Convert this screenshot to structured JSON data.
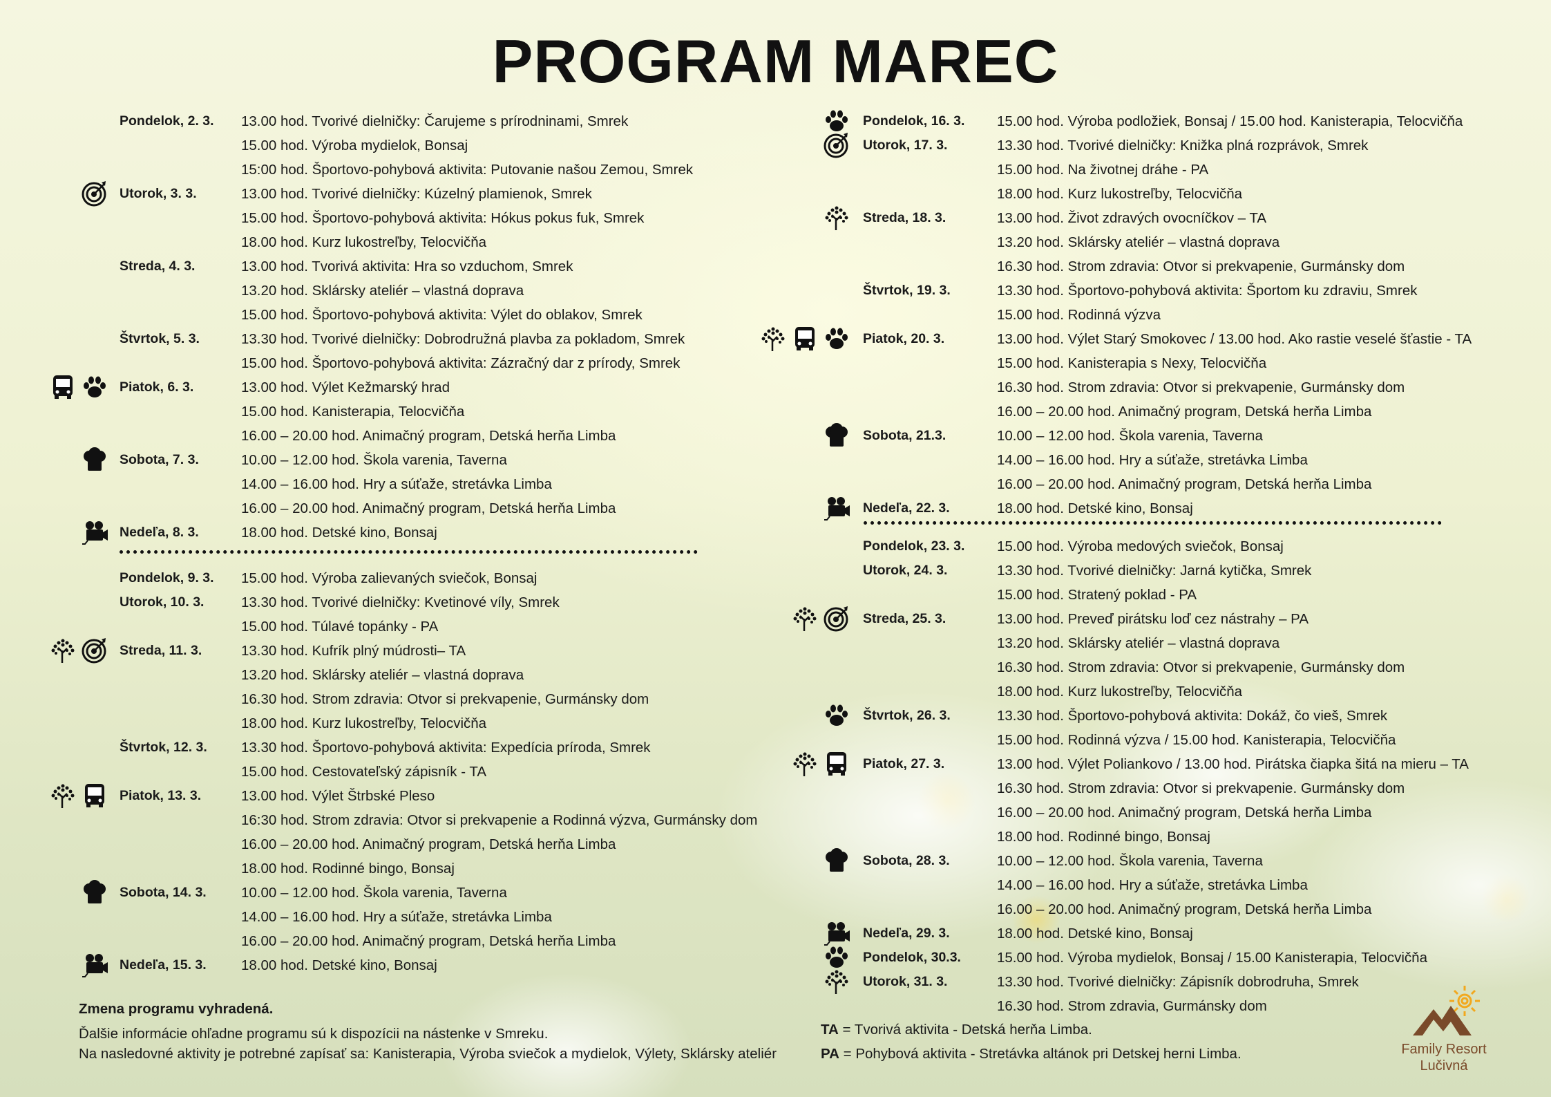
{
  "title": "PROGRAM MAREC",
  "columns": [
    {
      "side": "left",
      "blocks": [
        {
          "rows": [
            {
              "day": "Pondelok, 2. 3.",
              "text": "13.00 hod. Tvorivé dielničky: Čarujeme s prírodninami, Smrek"
            },
            {
              "text": "15.00 hod. Výroba mydielok, Bonsaj"
            },
            {
              "text": "15:00 hod. Športovo-pohybová aktivita: Putovanie našou Zemou, Smrek"
            },
            {
              "day": "Utorok, 3. 3.",
              "icons": [
                "target"
              ],
              "text": "13.00 hod. Tvorivé dielničky: Kúzelný plamienok, Smrek"
            },
            {
              "text": "15.00 hod. Športovo-pohybová aktivita: Hókus pokus fuk, Smrek"
            },
            {
              "text": "18.00 hod. Kurz lukostreľby, Telocvičňa"
            },
            {
              "day": "Streda, 4. 3.",
              "text": "13.00 hod. Tvorivá aktivita: Hra so vzduchom, Smrek"
            },
            {
              "text": "13.20 hod. Sklársky ateliér – vlastná doprava"
            },
            {
              "text": "15.00 hod. Športovo-pohybová aktivita: Výlet do oblakov, Smrek"
            },
            {
              "day": "Štvrtok, 5. 3.",
              "text": "13.30 hod. Tvorivé dielničky: Dobrodružná plavba za pokladom, Smrek"
            },
            {
              "text": "15.00 hod. Športovo-pohybová aktivita: Zázračný dar z prírody, Smrek"
            },
            {
              "day": "Piatok, 6. 3.",
              "icons": [
                "bus",
                "paw"
              ],
              "text": "13.00 hod. Výlet Kežmarský hrad"
            },
            {
              "text": "15.00 hod. Kanisterapia, Telocvičňa"
            },
            {
              "text": "16.00 – 20.00 hod. Animačný program, Detská herňa Limba"
            },
            {
              "day": "Sobota, 7. 3.",
              "icons": [
                "chef-hat"
              ],
              "text": "10.00 – 12.00 hod. Škola varenia, Taverna"
            },
            {
              "text": "14.00 – 16.00 hod. Hry a súťaže, stretávka Limba"
            },
            {
              "text": "16.00 – 20.00 hod. Animačný program, Detská herňa Limba"
            },
            {
              "day": "Nedeľa, 8. 3.",
              "icons": [
                "movie-camera"
              ],
              "text": "18.00 hod. Detské kino, Bonsaj"
            }
          ]
        },
        {
          "rows": [
            {
              "day": "Pondelok, 9. 3.",
              "text": "15.00 hod. Výroba zalievaných sviečok, Bonsaj"
            },
            {
              "day": "Utorok, 10. 3.",
              "text": "13.30 hod. Tvorivé dielničky: Kvetinové víly, Smrek"
            },
            {
              "text": "15.00 hod. Túlavé topánky - PA"
            },
            {
              "day": "Streda, 11. 3.",
              "icons": [
                "tree",
                "target"
              ],
              "text": "13.30 hod. Kufrík plný múdrosti– TA"
            },
            {
              "text": "13.20 hod. Sklársky ateliér – vlastná doprava"
            },
            {
              "text": "16.30 hod. Strom zdravia: Otvor si prekvapenie, Gurmánsky dom"
            },
            {
              "text": "18.00 hod. Kurz lukostreľby, Telocvičňa"
            },
            {
              "day": "Štvrtok, 12. 3.",
              "text": "13.30 hod. Športovo-pohybová aktivita: Expedícia príroda, Smrek"
            },
            {
              "text": "15.00 hod. Cestovateľský zápisník - TA"
            },
            {
              "day": "Piatok, 13. 3.",
              "icons": [
                "tree",
                "bus"
              ],
              "text": "13.00 hod. Výlet Štrbské Pleso"
            },
            {
              "text": "16:30 hod. Strom zdravia: Otvor si prekvapenie  a Rodinná výzva, Gurmánsky dom"
            },
            {
              "text": "16.00 – 20.00 hod. Animačný program, Detská herňa Limba"
            },
            {
              "text": "18.00 hod. Rodinné bingo, Bonsaj"
            },
            {
              "day": "Sobota, 14. 3.",
              "icons": [
                "chef-hat"
              ],
              "text": "10.00 – 12.00 hod. Škola varenia, Taverna"
            },
            {
              "text": "14.00 – 16.00 hod. Hry a súťaže, stretávka Limba"
            },
            {
              "text": "16.00 – 20.00 hod. Animačný program, Detská herňa Limba"
            },
            {
              "day": "Nedeľa, 15. 3.",
              "icons": [
                "movie-camera"
              ],
              "text": "18.00 hod. Detské kino, Bonsaj"
            }
          ]
        }
      ]
    },
    {
      "side": "right",
      "blocks": [
        {
          "rows": [
            {
              "day": "Pondelok, 16. 3.",
              "icons": [
                "paw"
              ],
              "text": "15.00 hod. Výroba podložiek, Bonsaj / 15.00 hod. Kanisterapia, Telocvičňa"
            },
            {
              "day": "Utorok, 17. 3.",
              "icons": [
                "target"
              ],
              "text": "13.30 hod. Tvorivé dielničky: Knižka plná rozprávok, Smrek"
            },
            {
              "text": "15.00 hod. Na životnej dráhe - PA"
            },
            {
              "text": "18.00 hod. Kurz lukostreľby, Telocvičňa"
            },
            {
              "day": "Streda, 18. 3.",
              "icons": [
                "tree"
              ],
              "text": "13.00 hod. Život zdravých ovocníčkov – TA"
            },
            {
              "text": "13.20 hod. Sklársky ateliér – vlastná doprava"
            },
            {
              "text": "16.30 hod. Strom zdravia: Otvor si prekvapenie, Gurmánsky dom"
            },
            {
              "day": "Štvrtok, 19. 3.",
              "text": "13.30 hod. Športovo-pohybová aktivita: Športom ku zdraviu, Smrek"
            },
            {
              "text": "15.00 hod. Rodinná výzva"
            },
            {
              "day": "Piatok, 20. 3.",
              "icons": [
                "tree",
                "bus",
                "paw"
              ],
              "text": "13.00 hod. Výlet Starý Smokovec / 13.00 hod. Ako rastie veselé šťastie -  TA"
            },
            {
              "text": "15.00 hod. Kanisterapia s Nexy, Telocvičňa"
            },
            {
              "text": "16.30 hod. Strom zdravia: Otvor si prekvapenie, Gurmánsky dom"
            },
            {
              "text": "16.00 – 20.00 hod. Animačný program, Detská herňa Limba"
            },
            {
              "day": "Sobota, 21.3.",
              "icons": [
                "chef-hat"
              ],
              "text": "10.00 – 12.00 hod. Škola varenia, Taverna"
            },
            {
              "text": "14.00 – 16.00 hod. Hry a súťaže, stretávka Limba"
            },
            {
              "text": "16.00 – 20.00 hod. Animačný program, Detská herňa Limba"
            },
            {
              "day": "Nedeľa, 22. 3.",
              "icons": [
                "movie-camera"
              ],
              "text": "18.00 hod. Detské kino, Bonsaj"
            }
          ]
        },
        {
          "rows": [
            {
              "day": "Pondelok, 23. 3.",
              "text": "15.00 hod. Výroba medových sviečok, Bonsaj"
            },
            {
              "day": "Utorok, 24. 3.",
              "text": "13.30 hod. Tvorivé dielničky: Jarná kytička, Smrek"
            },
            {
              "text": "15.00 hod. Stratený poklad - PA"
            },
            {
              "day": "Streda, 25. 3.",
              "icons": [
                "tree",
                "target"
              ],
              "text": "13.00 hod. Preveď pirátsku loď cez nástrahy – PA"
            },
            {
              "text": "13.20 hod. Sklársky ateliér – vlastná doprava"
            },
            {
              "text": "16.30 hod. Strom zdravia: Otvor si prekvapenie, Gurmánsky dom"
            },
            {
              "text": "18.00 hod. Kurz lukostreľby, Telocvičňa"
            },
            {
              "day": "Štvrtok, 26. 3.",
              "icons": [
                "paw"
              ],
              "text": "13.30 hod. Športovo-pohybová aktivita: Dokáž, čo vieš, Smrek"
            },
            {
              "text": "15.00 hod. Rodinná výzva /  15.00 hod. Kanisterapia, Telocvičňa"
            },
            {
              "day": "Piatok, 27. 3.",
              "icons": [
                "tree",
                "bus"
              ],
              "text": "13.00 hod. Výlet Poliankovo / 13.00 hod. Pirátska čiapka šitá na mieru – TA"
            },
            {
              "text": "16.30 hod. Strom zdravia: Otvor si prekvapenie. Gurmánsky dom"
            },
            {
              "text": "16.00 – 20.00 hod. Animačný program, Detská herňa Limba"
            },
            {
              "text": "18.00 hod. Rodinné bingo, Bonsaj"
            },
            {
              "day": "Sobota, 28. 3.",
              "icons": [
                "chef-hat"
              ],
              "text": "10.00 – 12.00 hod. Škola varenia, Taverna"
            },
            {
              "text": "14.00 – 16.00 hod. Hry a súťaže, stretávka Limba"
            },
            {
              "text": "16.00 – 20.00 hod. Animačný program, Detská herňa Limba"
            },
            {
              "day": "Nedeľa, 29. 3.",
              "icons": [
                "movie-camera"
              ],
              "text": "18.00 hod. Detské kino, Bonsaj"
            },
            {
              "day": "Pondelok, 30.3.",
              "icons": [
                "paw"
              ],
              "text": "15.00 hod. Výroba mydielok, Bonsaj / 15.00 Kanisterapia, Telocvičňa"
            },
            {
              "day": "Utorok, 31. 3.",
              "icons": [
                "tree"
              ],
              "text": "13.30 hod. Tvorivé dielničky: Zápisník dobrodruha, Smrek"
            },
            {
              "text": "16.30 hod. Strom zdravia, Gurmánsky dom"
            }
          ]
        }
      ]
    }
  ],
  "footer": {
    "notice": "Zmena programu vyhradená.",
    "info_line1": "Ďalšie informácie ohľadne programu sú k dispozícii na nástenke v Smreku.",
    "info_line2": "Na nasledovné aktivity je potrebné zapísať sa: Kanisterapia, Výroba sviečok a mydielok, Výlety, Sklársky ateliér"
  },
  "legend": [
    {
      "key": "TA",
      "text": " = Tvorivá aktivita - Detská herňa Limba."
    },
    {
      "key": "PA",
      "text": " = Pohybová aktivita -  Stretávka altánok pri Detskej herni Limba."
    }
  ],
  "logo": {
    "line1": "Family Resort",
    "line2": "Lučivná",
    "sun_color": "#f2a81d",
    "mountain_color": "#7a4a2a"
  }
}
